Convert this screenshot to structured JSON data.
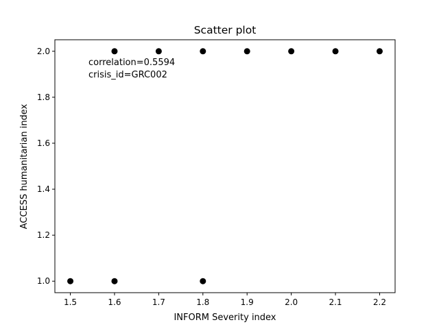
{
  "chart_data": {
    "type": "scatter",
    "title": "Scatter plot",
    "xlabel": "INFORM Severity index",
    "ylabel": "ACCESS humanitarian index",
    "xlim": [
      1.465,
      2.235
    ],
    "ylim": [
      0.95,
      2.05
    ],
    "x_ticks": [
      "1.5",
      "1.6",
      "1.7",
      "1.8",
      "1.9",
      "2.0",
      "2.1",
      "2.2"
    ],
    "y_ticks": [
      "1.0",
      "1.2",
      "1.4",
      "1.6",
      "1.8",
      "2.0"
    ],
    "grid": false,
    "marker_color": "#000000",
    "points": [
      {
        "x": 1.5,
        "y": 1.0
      },
      {
        "x": 1.6,
        "y": 1.0
      },
      {
        "x": 1.8,
        "y": 1.0
      },
      {
        "x": 1.6,
        "y": 2.0
      },
      {
        "x": 1.7,
        "y": 2.0
      },
      {
        "x": 1.8,
        "y": 2.0
      },
      {
        "x": 1.9,
        "y": 2.0
      },
      {
        "x": 2.0,
        "y": 2.0
      },
      {
        "x": 2.1,
        "y": 2.0
      },
      {
        "x": 2.2,
        "y": 2.0
      }
    ],
    "annotations": [
      "correlation=0.5594",
      "crisis_id=GRC002"
    ]
  }
}
